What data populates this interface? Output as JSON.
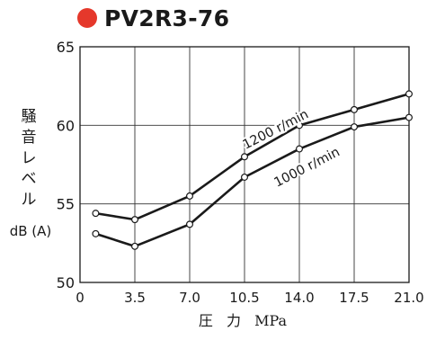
{
  "accent_color": "#e5382b",
  "chart_data": {
    "type": "line",
    "title": "PV2R3-76",
    "xlabel": "圧 力 MPa",
    "ylabel": "騒音レベル",
    "ylabel_unit": "dB (A)",
    "x_ticks": [
      "0",
      "3.5",
      "7.0",
      "10.5",
      "14.0",
      "17.5",
      "21.0"
    ],
    "y_ticks": [
      "50",
      "55",
      "60",
      "65"
    ],
    "xlim": [
      0,
      21
    ],
    "ylim": [
      50,
      65
    ],
    "grid": true,
    "legend": "none",
    "series": [
      {
        "name": "1200 r/min",
        "x": [
          1,
          3.5,
          7.0,
          10.5,
          14.0,
          17.5,
          21.0
        ],
        "y": [
          54.4,
          54.0,
          55.5,
          58.0,
          60.0,
          61.0,
          62.0
        ]
      },
      {
        "name": "1000 r/min",
        "x": [
          1,
          3.5,
          7.0,
          10.5,
          14.0,
          17.5,
          21.0
        ],
        "y": [
          53.1,
          52.3,
          53.7,
          56.7,
          58.5,
          59.9,
          60.5
        ]
      }
    ]
  }
}
